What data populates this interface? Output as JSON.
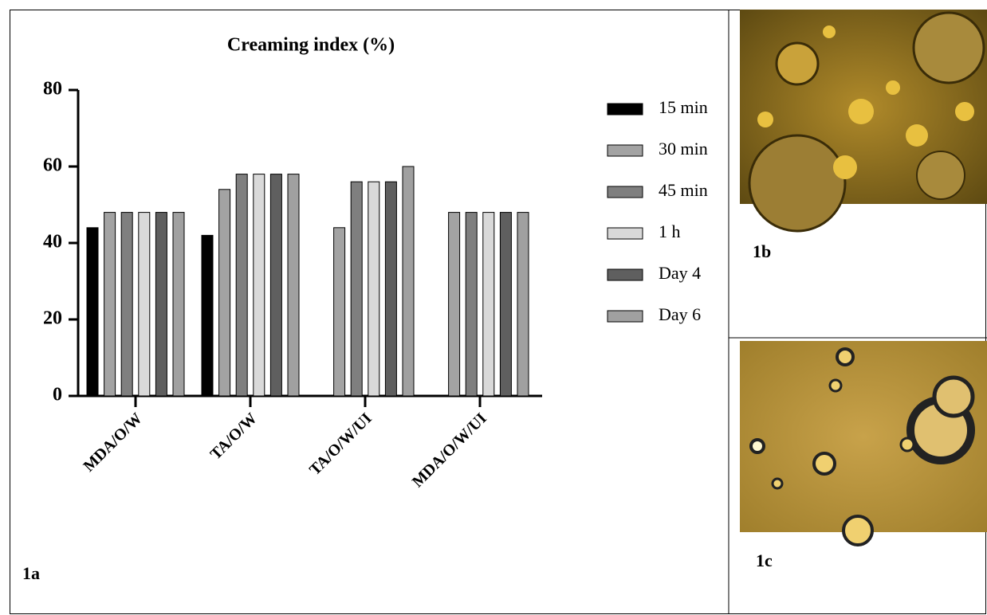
{
  "chart_data": {
    "type": "bar",
    "title": "Creaming index (%)",
    "categories": [
      "MDA/O/W",
      "TA/O/W",
      "TA/O/W/UI",
      "MDA/O/W/UI"
    ],
    "series": [
      {
        "name": "15 min",
        "color": "#000000",
        "values": [
          44,
          42,
          null,
          null
        ]
      },
      {
        "name": "30 min",
        "color": "#a3a3a3",
        "values": [
          48,
          54,
          44,
          48
        ]
      },
      {
        "name": "45 min",
        "color": "#7f7f7f",
        "values": [
          48,
          58,
          56,
          48
        ]
      },
      {
        "name": "1 h",
        "color": "#d9d9d9",
        "values": [
          48,
          58,
          56,
          48
        ]
      },
      {
        "name": "Day 4",
        "color": "#5f5f5f",
        "values": [
          48,
          58,
          56,
          48
        ]
      },
      {
        "name": "Day 6",
        "color": "#a0a0a0",
        "values": [
          48,
          58,
          60,
          48
        ]
      }
    ],
    "ylim": [
      0,
      80
    ],
    "yticks": [
      0,
      20,
      40,
      60,
      80
    ],
    "grid": false,
    "legend": "right"
  },
  "panel_labels": {
    "a": "1a",
    "b": "1b",
    "c": "1c"
  }
}
